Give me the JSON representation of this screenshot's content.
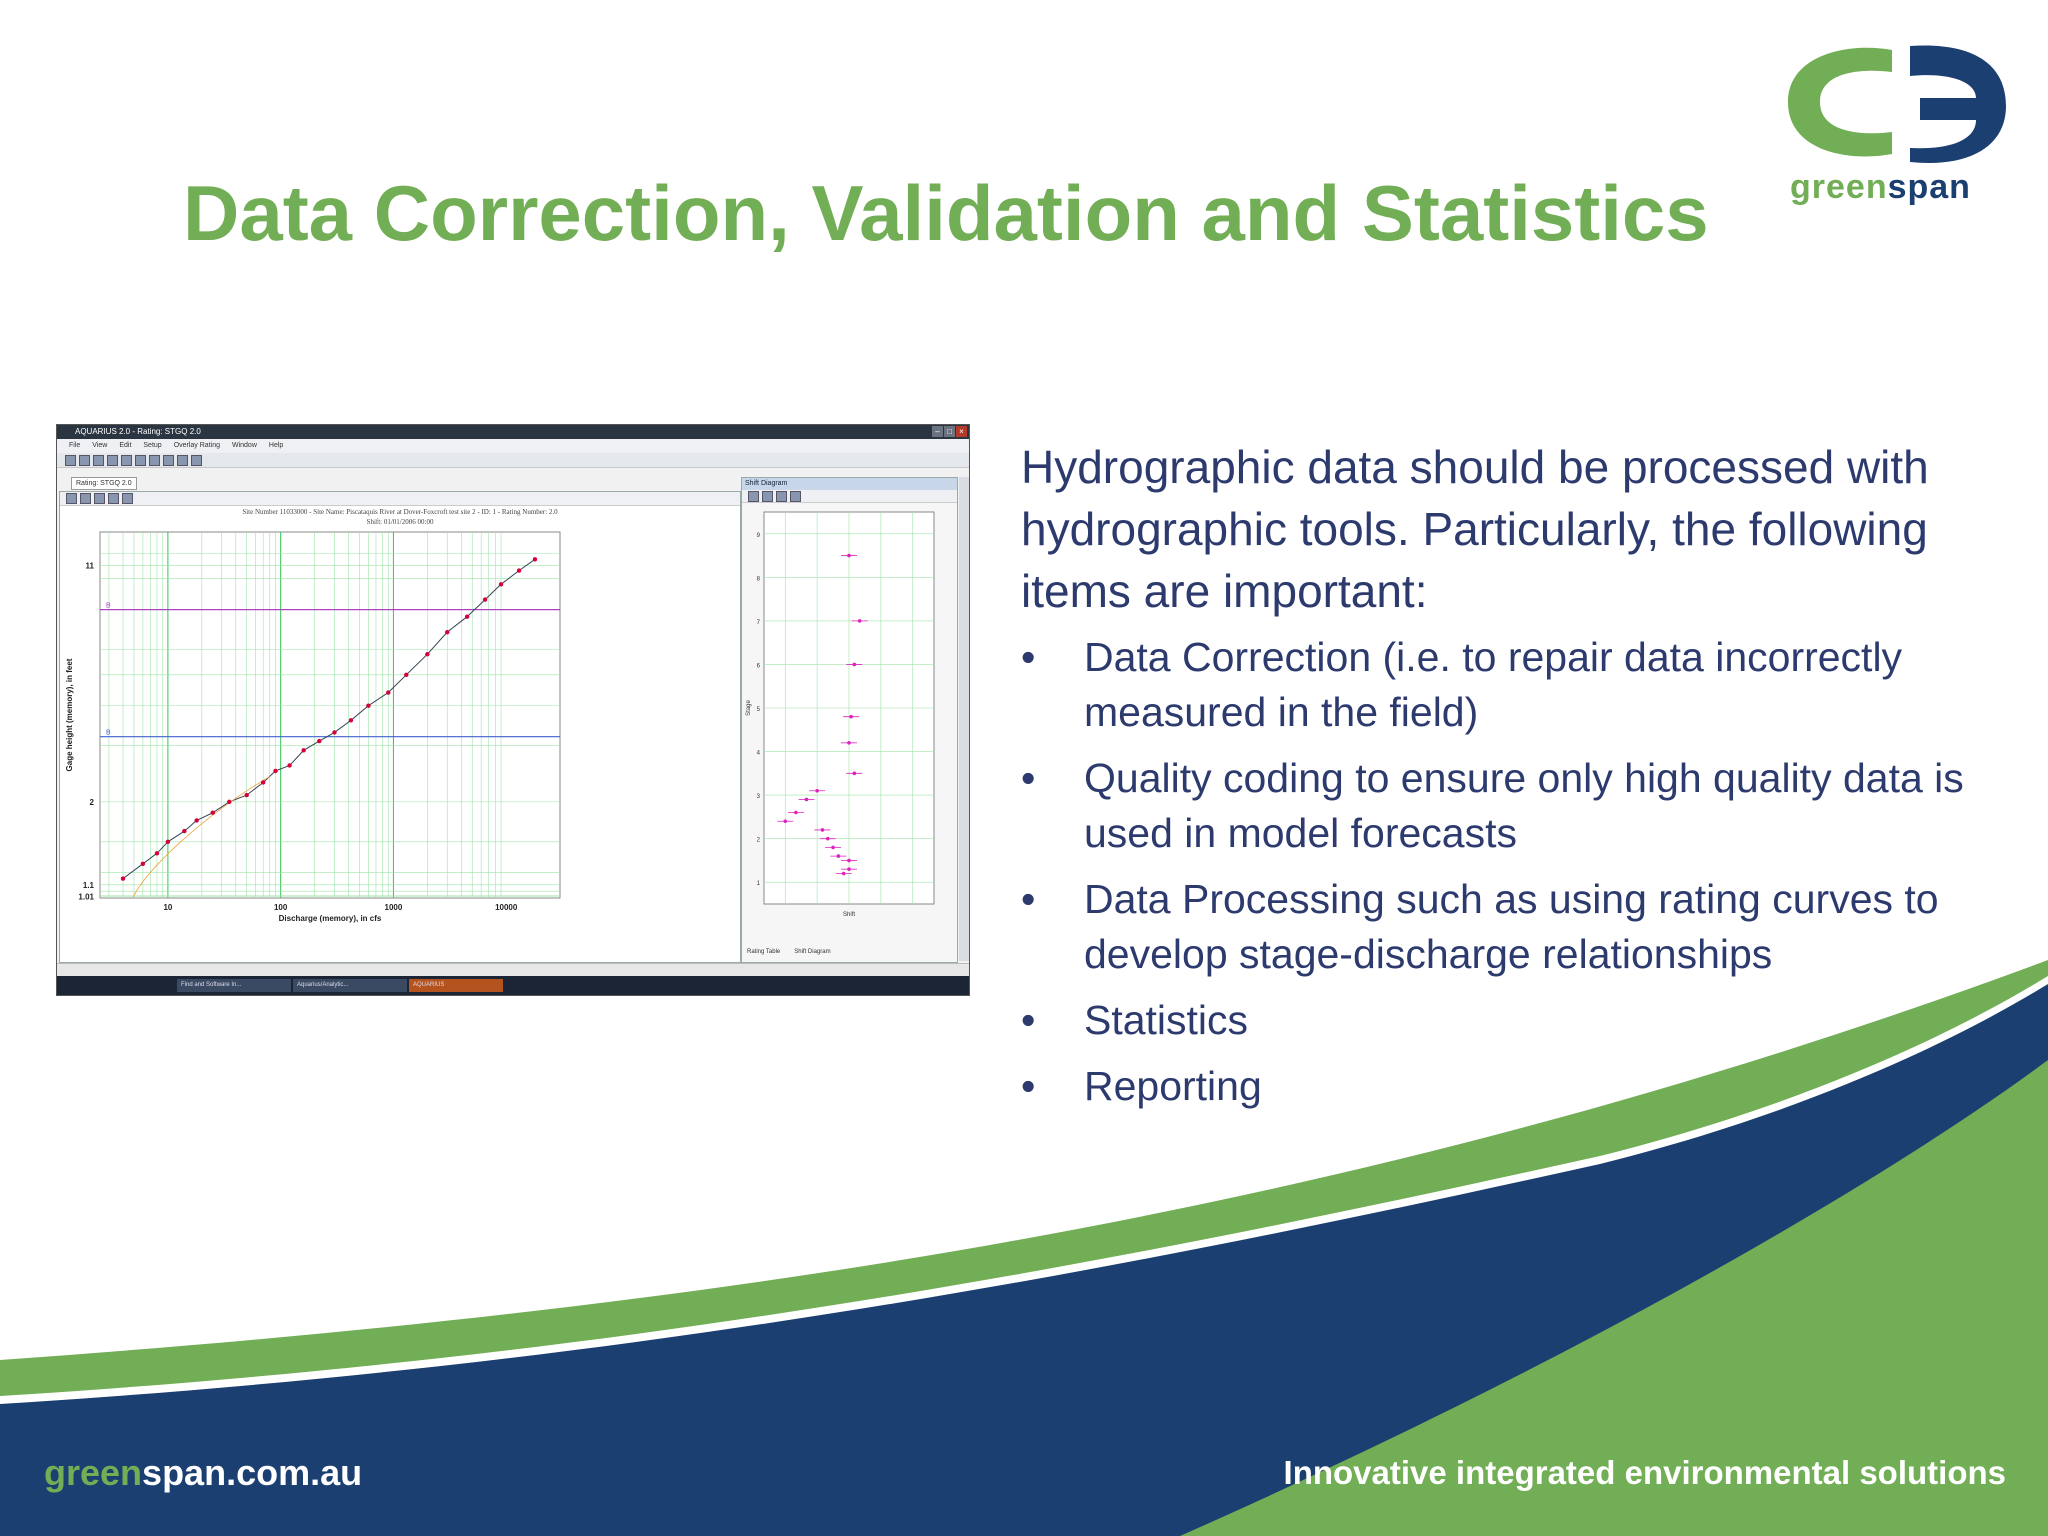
{
  "slide": {
    "title": "Data Correction, Validation and Statistics",
    "intro": "Hydrographic data should be processed with hydrographic tools. Particularly, the following items are important:",
    "bullet_char": "•",
    "bullets": [
      "Data Correction (i.e. to repair data incorrectly measured in the field)",
      "Quality coding to ensure only high quality data is used in model forecasts",
      "Data Processing such as using rating curves to develop stage-discharge relationships",
      "Statistics",
      "Reporting"
    ]
  },
  "logo": {
    "text_green": "green",
    "text_blue": "span"
  },
  "footer": {
    "url_green": "green",
    "url_white": "span.com.au",
    "tagline": "Innovative integrated environmental solutions"
  },
  "colors": {
    "green": "#72ae55",
    "navy": "#1c3f72",
    "text": "#2c3a6e"
  },
  "app": {
    "window_title": "AQUARIUS 2.0 - Rating: STGQ 2.0",
    "menu": [
      "File",
      "View",
      "Edit",
      "Setup",
      "Overlay Rating",
      "Window",
      "Help"
    ],
    "doc_tab": "Rating: STGQ 2.0",
    "side_panel_title": "Shift Diagram",
    "side_tabs": [
      "Rating Table",
      "Shift Diagram"
    ],
    "taskbar_items": [
      "Find and Software In...",
      "Aquarius/Analytic...",
      "AQUARIUS"
    ],
    "chart_info": "Site Number 11033000 - Site Name: Piscataquis River at Dover-Foxcroft test site 2 - ID: 1 - Rating Number: 2.0",
    "chart_info2": "Shift: 01/01/2006 00:00"
  },
  "chart_data": [
    {
      "type": "scatter",
      "title": "Site Number 11033000 - Site Name: Piscataquis River at Dover-Foxcroft test site 2 - ID: 1 - Rating Number: 2.0",
      "xlabel": "Discharge (memory), in cfs",
      "ylabel": "Gage height (memory), in feet",
      "x_scale": "log",
      "y_scale": "log",
      "x_ticks": [
        "10",
        "100",
        "1000",
        "10000"
      ],
      "y_ticks": [
        "1.01",
        "1.1",
        "2",
        "11"
      ],
      "grid": true,
      "series": [
        {
          "name": "",
          "color": "#d6003a",
          "x": [
            4,
            6,
            8,
            10,
            14,
            18,
            25,
            35,
            50,
            70,
            90,
            120,
            160,
            220,
            300,
            420,
            600,
            900,
            1300,
            2000,
            3000,
            4500,
            6500,
            9000,
            13000,
            18000
          ],
          "y": [
            1.15,
            1.28,
            1.38,
            1.5,
            1.62,
            1.75,
            1.85,
            2.0,
            2.1,
            2.3,
            2.5,
            2.6,
            2.9,
            3.1,
            3.3,
            3.6,
            4.0,
            4.4,
            5.0,
            5.8,
            6.8,
            7.6,
            8.6,
            9.6,
            10.6,
            11.5
          ]
        }
      ],
      "reference_lines": [
        {
          "label": "B",
          "y": 8.0,
          "color": "#b040c0"
        },
        {
          "label": "B",
          "y": 3.2,
          "color": "#4060d0"
        }
      ]
    },
    {
      "type": "scatter",
      "title": "",
      "xlabel": "Shift",
      "ylabel": "Stage",
      "y_ticks": [
        "1",
        "2",
        "3",
        "4",
        "5",
        "6",
        "7",
        "8",
        "9"
      ],
      "grid": true,
      "series": [
        {
          "name": "",
          "color": "#e020c0",
          "x": [
            -0.6,
            -0.5,
            -0.4,
            -0.3,
            -0.25,
            -0.2,
            -0.15,
            -0.1,
            0.0,
            -0.05,
            0.0,
            0.05,
            0.0,
            0.02,
            0.05,
            0.1,
            0.0
          ],
          "y": [
            2.4,
            2.6,
            2.9,
            3.1,
            2.2,
            2.0,
            1.8,
            1.6,
            1.3,
            1.2,
            1.5,
            3.5,
            4.2,
            4.8,
            6.0,
            7.0,
            8.5
          ]
        }
      ]
    }
  ]
}
